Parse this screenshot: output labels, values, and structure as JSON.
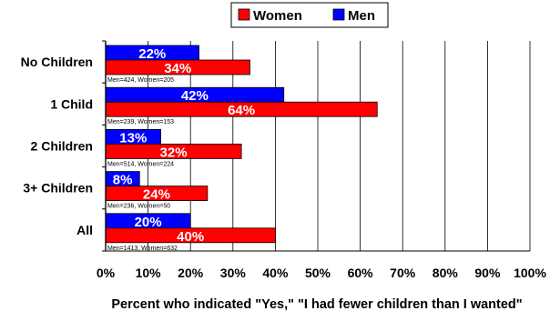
{
  "chart_data": {
    "type": "bar",
    "orientation": "horizontal",
    "categories": [
      "No Children",
      "1 Child",
      "2 Children",
      "3+ Children",
      "All"
    ],
    "series": [
      {
        "name": "Men",
        "color": "#0000ff",
        "values": [
          22,
          42,
          13,
          8,
          20
        ],
        "labels": [
          "22%",
          "42%",
          "13%",
          "8%",
          "20%"
        ]
      },
      {
        "name": "Women",
        "color": "#ff0000",
        "values": [
          34,
          64,
          32,
          24,
          40
        ],
        "labels": [
          "34%",
          "64%",
          "32%",
          "24%",
          "40%"
        ]
      }
    ],
    "legend_order": [
      "Women",
      "Men"
    ],
    "legend_position": "top-center",
    "notes": [
      "Men=424, Women=205",
      "Men=239, Women=153",
      "Men=514, Women=224",
      "Men=236, Women=50",
      "Men=1413, Women=632"
    ],
    "xlabel": "Percent who indicated \"Yes,\" \"I had fewer children than I wanted\"",
    "xticks": [
      "0%",
      "10%",
      "20%",
      "30%",
      "40%",
      "50%",
      "60%",
      "70%",
      "80%",
      "90%",
      "100%"
    ],
    "xlim": [
      0,
      100
    ],
    "grid": true
  }
}
